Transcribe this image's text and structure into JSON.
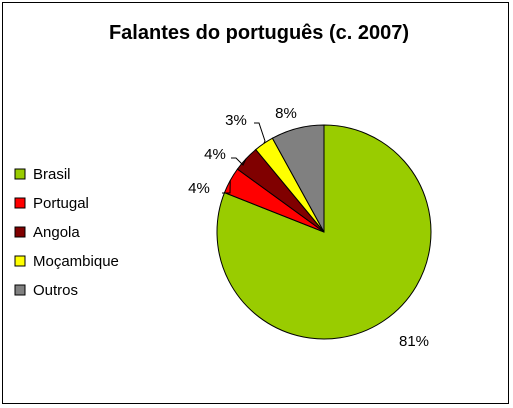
{
  "chart_data": {
    "type": "pie",
    "title": "Falantes do português (c. 2007)",
    "categories": [
      "Brasil",
      "Portugal",
      "Angola",
      "Moçambique",
      "Outros"
    ],
    "values": [
      81,
      4,
      4,
      3,
      8
    ],
    "labels": [
      "81%",
      "4%",
      "4%",
      "3%",
      "8%"
    ],
    "colors": [
      "#99cc00",
      "#ff0000",
      "#800000",
      "#ffff00",
      "#808080"
    ],
    "start_angle_deg": 0,
    "direction": "clockwise",
    "legend_position": "left"
  }
}
